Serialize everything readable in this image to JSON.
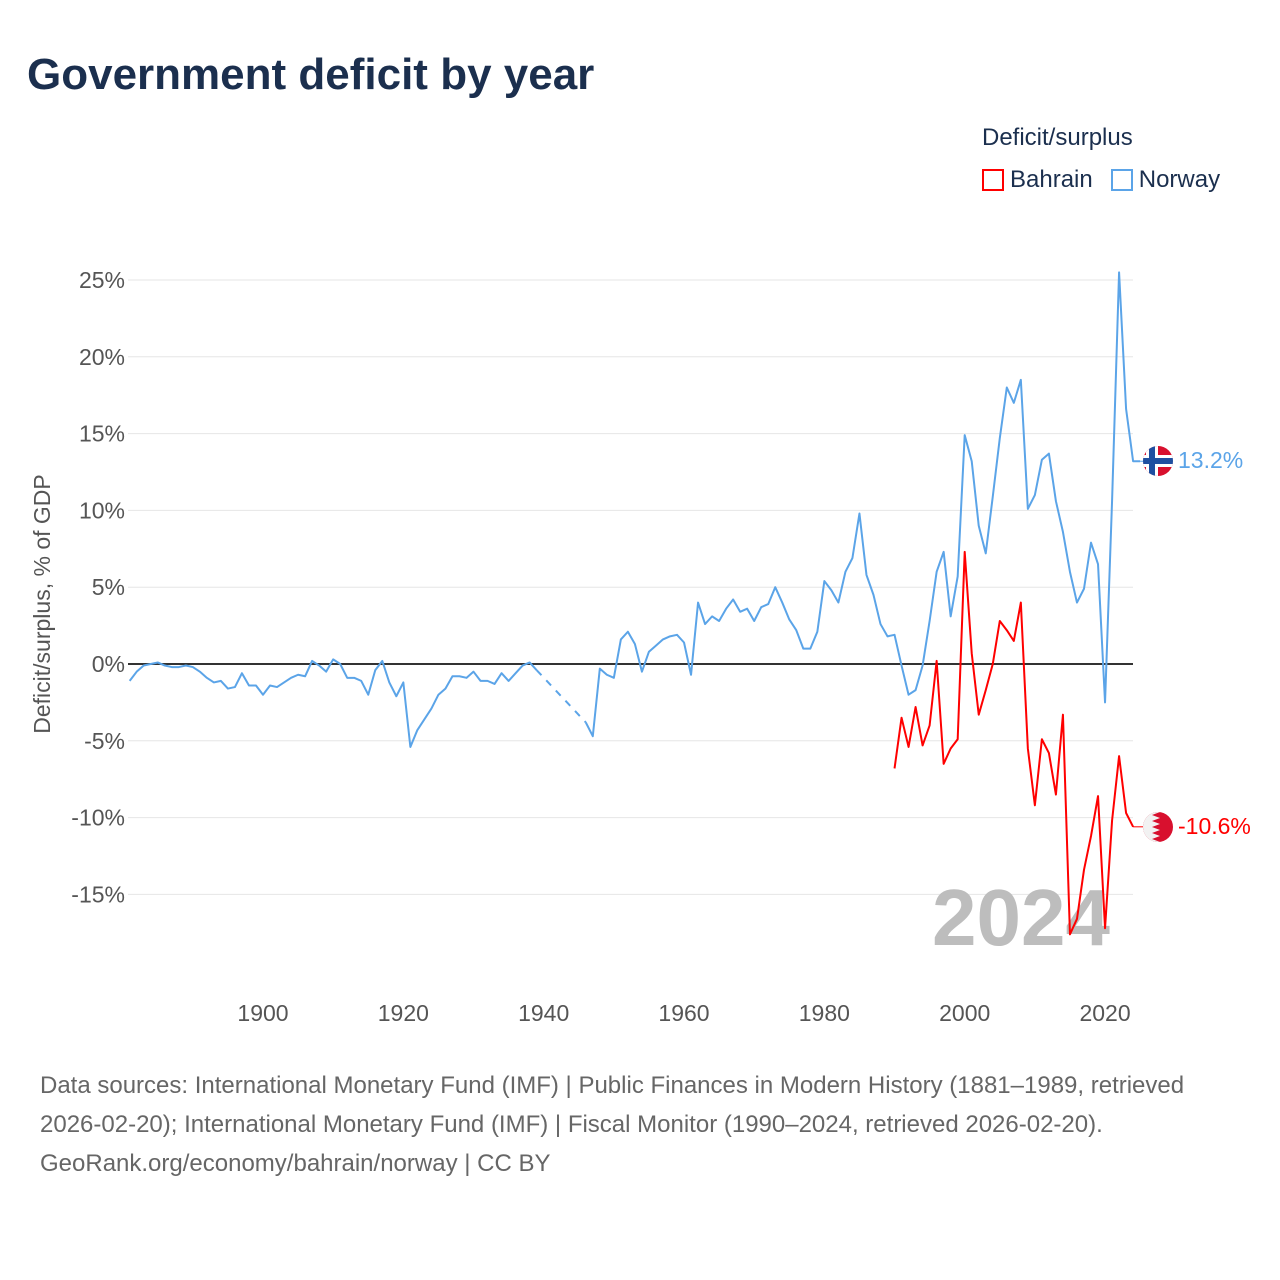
{
  "title": "Government deficit by year",
  "legend": {
    "title": "Deficit/surplus",
    "items": [
      {
        "label": "Bahrain",
        "color": "#ff0000"
      },
      {
        "label": "Norway",
        "color": "#5ba4e8"
      }
    ]
  },
  "chart_data": {
    "type": "line",
    "title": "Government deficit by year",
    "xlabel": "",
    "ylabel": "Deficit/surplus, % of GDP",
    "xlim": [
      1881,
      2024
    ],
    "ylim": [
      -18,
      26
    ],
    "x_ticks": [
      1900,
      1920,
      1940,
      1960,
      1980,
      2000,
      2020
    ],
    "x_tick_labels": [
      "1900",
      "1920",
      "1940",
      "1960",
      "1980",
      "2000",
      "2020"
    ],
    "y_ticks": [
      25,
      20,
      15,
      10,
      5,
      0,
      -5,
      -10,
      -15
    ],
    "y_tick_labels": [
      "25%",
      "20%",
      "15%",
      "10%",
      "5%",
      "0%",
      "-5%",
      "-10%",
      "-15%"
    ],
    "grid": true,
    "legend_position": "top-right",
    "year_watermark": "2024",
    "series": [
      {
        "name": "Norway",
        "color": "#5ba4e8",
        "start_year": 1881,
        "end_label": "13.2%",
        "values": [
          -1.1,
          -0.5,
          -0.1,
          0,
          0.1,
          -0.1,
          -0.2,
          -0.2,
          -0.1,
          -0.2,
          -0.5,
          -0.9,
          -1.2,
          -1.1,
          -1.6,
          -1.5,
          -0.6,
          -1.4,
          -1.4,
          -2.0,
          -1.4,
          -1.5,
          -1.2,
          -0.9,
          -0.7,
          -0.8,
          0.2,
          -0.1,
          -0.5,
          0.3,
          0,
          -0.9,
          -0.9,
          -1.1,
          -2.0,
          -0.4,
          0.2,
          -1.2,
          -2.1,
          -1.2,
          -5.4,
          -4.3,
          -3.6,
          -2.9,
          -2.0,
          -1.6,
          -0.8,
          -0.8,
          -0.9,
          -0.5,
          -1.1,
          -1.1,
          -1.3,
          -0.6,
          -1.1,
          -0.6,
          -0.1,
          0.1,
          -0.4,
          null,
          null,
          null,
          null,
          null,
          null,
          -3.8,
          -4.7,
          -0.3,
          -0.7,
          -0.9,
          1.6,
          2.1,
          1.3,
          -0.5,
          0.8,
          1.2,
          1.6,
          1.8,
          1.9,
          1.4,
          -0.7,
          4.0,
          2.6,
          3.1,
          2.8,
          3.6,
          4.2,
          3.4,
          3.6,
          2.8,
          3.7,
          3.9,
          5.0,
          4.0,
          2.9,
          2.2,
          1.0,
          1.0,
          2.1,
          5.4,
          4.8,
          4.0,
          6.0,
          6.9,
          9.8,
          5.8,
          4.5,
          2.6,
          1.8,
          1.9,
          -0.1,
          -2.0,
          -1.7,
          -0.1,
          2.8,
          6.0,
          7.3,
          3.1,
          5.7,
          14.9,
          13.2,
          9.0,
          7.2,
          10.9,
          14.7,
          18.0,
          17.0,
          18.5,
          10.1,
          11.0,
          13.3,
          13.7,
          10.6,
          8.6,
          6.0,
          4.0,
          4.9,
          7.9,
          6.5,
          -2.5,
          10.6,
          25.5,
          16.6,
          13.2,
          13.2
        ]
      },
      {
        "name": "Bahrain",
        "color": "#ff0000",
        "start_year": 1990,
        "end_label": "-10.6%",
        "values": [
          -6.8,
          -3.5,
          -5.4,
          -2.8,
          -5.3,
          -4.0,
          0.2,
          -6.5,
          -5.5,
          -4.9,
          7.3,
          0.7,
          -3.3,
          -1.7,
          0,
          2.8,
          2.2,
          1.5,
          4.0,
          -5.5,
          -9.2,
          -4.9,
          -5.8,
          -8.5,
          -3.3,
          -17.6,
          -16.6,
          -13.4,
          -11.2,
          -8.6,
          -17.2,
          -10.2,
          -6.0,
          -9.7,
          -10.6
        ]
      }
    ]
  },
  "footer": {
    "sources": "Data sources: International Monetary Fund (IMF) | Public Finances in Modern History (1881–1989, retrieved 2026-02-20); International Monetary Fund (IMF) | Fiscal Monitor (1990–2024, retrieved 2026-02-20).",
    "credit": "GeoRank.org/economy/bahrain/norway | CC BY"
  }
}
